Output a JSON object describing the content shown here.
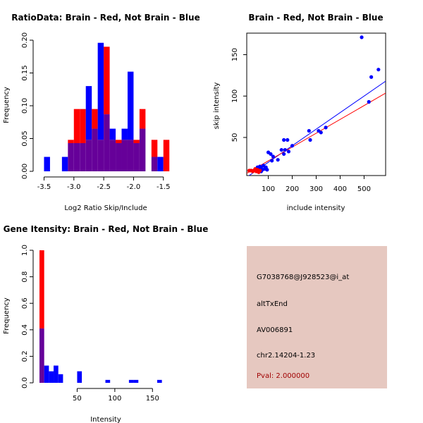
{
  "chart_data": [
    {
      "type": "histogram",
      "title": "RatioData: Brain - Red, Not Brain - Blue",
      "xlabel": "Log2 Ratio Skip/Include",
      "ylabel": "Frequency",
      "xlim": [
        -3.6,
        -1.32
      ],
      "ylim": [
        0,
        0.2
      ],
      "xticks": [
        -3.5,
        -3.0,
        -2.5,
        -2.0,
        -1.5
      ],
      "xtick_labels": [
        "-3.5",
        "-3.0",
        "-2.5",
        "-2.0",
        "-1.5"
      ],
      "yticks": [
        0.0,
        0.05,
        0.1,
        0.15,
        0.2
      ],
      "ytick_labels": [
        "0.00",
        "0.05",
        "0.10",
        "0.15",
        "0.20"
      ],
      "bin_width": 0.1,
      "bin_starts": [
        -3.6,
        -3.5,
        -3.4,
        -3.3,
        -3.2,
        -3.1,
        -3.0,
        -2.9,
        -2.8,
        -2.7,
        -2.6,
        -2.5,
        -2.4,
        -2.3,
        -2.2,
        -2.1,
        -2.0,
        -1.9,
        -1.8,
        -1.7,
        -1.6,
        -1.5,
        -1.4
      ],
      "series": [
        {
          "name": "Brain",
          "color": "#ff0000",
          "values": [
            0,
            0,
            0,
            0,
            0,
            0.048,
            0.095,
            0.095,
            0.048,
            0.095,
            0.048,
            0.19,
            0.048,
            0.048,
            0.048,
            0.048,
            0.048,
            0.095,
            0,
            0.048,
            0,
            0.048,
            0
          ]
        },
        {
          "name": "Not Brain",
          "color": "#0000ff",
          "values": [
            0,
            0.022,
            0,
            0,
            0.022,
            0.043,
            0.043,
            0.043,
            0.13,
            0.065,
            0.196,
            0.087,
            0.065,
            0.043,
            0.065,
            0.152,
            0.043,
            0.065,
            0,
            0.022,
            0.022,
            0,
            0
          ]
        }
      ],
      "overlap_color": "#660099"
    },
    {
      "type": "scatter",
      "title": "Brain - Red, Not Brain - Blue",
      "xlabel": "include intensity",
      "ylabel": "skip intensity",
      "xlim": [
        10,
        590
      ],
      "ylim": [
        4,
        176
      ],
      "xticks": [
        100,
        200,
        300,
        400,
        500
      ],
      "xtick_labels": [
        "100",
        "200",
        "300",
        "400",
        "500"
      ],
      "yticks": [
        50,
        100,
        150
      ],
      "ytick_labels": [
        "50",
        "100",
        "150"
      ],
      "series": [
        {
          "name": "Not Brain",
          "color": "#0000ff",
          "points": [
            [
              490,
              171
            ],
            [
              530,
              123
            ],
            [
              560,
              132
            ],
            [
              520,
              93
            ],
            [
              340,
              62
            ],
            [
              310,
              58
            ],
            [
              320,
              56
            ],
            [
              270,
              58
            ],
            [
              275,
              47
            ],
            [
              180,
              47
            ],
            [
              200,
              40
            ],
            [
              165,
              47
            ],
            [
              170,
              35
            ],
            [
              185,
              33
            ],
            [
              155,
              35
            ],
            [
              165,
              30
            ],
            [
              140,
              23
            ],
            [
              120,
              27
            ],
            [
              115,
              22
            ],
            [
              100,
              32
            ],
            [
              110,
              30
            ],
            [
              90,
              14
            ],
            [
              85,
              12
            ],
            [
              80,
              16
            ],
            [
              75,
              11
            ],
            [
              70,
              14
            ],
            [
              65,
              15
            ],
            [
              60,
              12
            ],
            [
              55,
              14
            ],
            [
              70,
              9
            ],
            [
              95,
              11
            ]
          ]
        },
        {
          "name": "Brain",
          "color": "#ff0000",
          "points": [
            [
              20,
              10
            ],
            [
              30,
              10
            ],
            [
              40,
              10
            ],
            [
              45,
              12
            ],
            [
              50,
              9
            ],
            [
              55,
              11
            ],
            [
              60,
              9
            ],
            [
              65,
              10
            ],
            [
              60,
              8
            ],
            [
              35,
              9
            ],
            [
              25,
              10
            ],
            [
              45,
              10
            ]
          ]
        }
      ],
      "fit_lines": [
        {
          "name": "Not Brain fit",
          "color": "#0000ff",
          "intercept": 0,
          "slope": 0.2
        },
        {
          "name": "Brain fit",
          "color": "#ff0000",
          "intercept": 5,
          "slope": 0.167
        }
      ]
    },
    {
      "type": "histogram",
      "title": "Gene Itensity: Brain - Red, Not Brain - Blue",
      "xlabel": "Intensity",
      "ylabel": "Frequency",
      "xlim": [
        0,
        175
      ],
      "ylim": [
        0,
        1.0
      ],
      "xticks": [
        50,
        100,
        150
      ],
      "xtick_labels": [
        "50",
        "100",
        "150"
      ],
      "yticks": [
        0.0,
        0.2,
        0.4,
        0.6,
        0.8,
        1.0
      ],
      "ytick_labels": [
        "0.0",
        "0.2",
        "0.4",
        "0.6",
        "0.8",
        "1.0"
      ],
      "bin_width": 6.25,
      "bin_starts": [
        0,
        6.25,
        12.5,
        18.75,
        25,
        31.25,
        37.5,
        43.75,
        50,
        56.25,
        62.5,
        68.75,
        75,
        81.25,
        87.5,
        93.75,
        100,
        106.25,
        112.5,
        118.75,
        125,
        131.25,
        137.5,
        143.75,
        150,
        156.25,
        162.5
      ],
      "series": [
        {
          "name": "Brain",
          "color": "#ff0000",
          "values": [
            1.0,
            0,
            0,
            0,
            0,
            0,
            0,
            0,
            0,
            0,
            0,
            0,
            0,
            0,
            0,
            0,
            0,
            0,
            0,
            0,
            0,
            0,
            0,
            0,
            0,
            0,
            0
          ]
        },
        {
          "name": "Not Brain",
          "color": "#0000ff",
          "values": [
            0.41,
            0.13,
            0.087,
            0.13,
            0.065,
            0,
            0,
            0,
            0.087,
            0,
            0,
            0,
            0,
            0,
            0.022,
            0,
            0,
            0,
            0,
            0.022,
            0.022,
            0,
            0,
            0,
            0,
            0.022,
            0
          ]
        }
      ],
      "overlap_color": "#660099"
    }
  ],
  "info_panel": {
    "background": "#e6c8c0",
    "probe_id": "G7038768@J928523@i_at",
    "event_type": "altTxEnd",
    "accession": "AV006891",
    "location": "chr2.14204-1.23",
    "pval": "Pval: 2.000000",
    "pval_color": "#a00000"
  }
}
